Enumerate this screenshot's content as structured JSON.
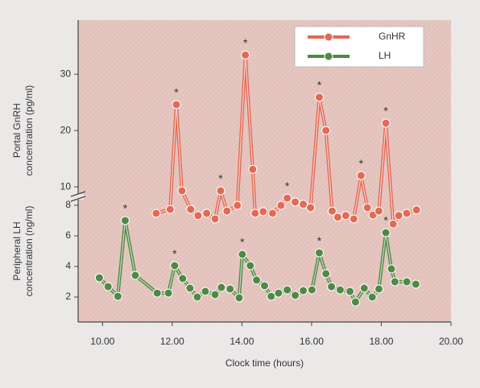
{
  "chart_data": {
    "type": "line",
    "xlabel": "Clock time (hours)",
    "ylabel": [
      "Portal GnRH",
      "concentration (pg/ml)"
    ],
    "y2label": [
      "Peripheral LH",
      "concentration (ng/ml)"
    ],
    "xlim": [
      9.3,
      20
    ],
    "xticks": [
      {
        "value": 10,
        "label": "10.00"
      },
      {
        "value": 12,
        "label": "12.00"
      },
      {
        "value": 14,
        "label": "14.00"
      },
      {
        "value": 16,
        "label": "16.00"
      },
      {
        "value": 18,
        "label": "18.00"
      },
      {
        "value": 20,
        "label": "20.00"
      }
    ],
    "ylim": [
      -14,
      39.6
    ],
    "yticks": [
      10,
      20,
      30
    ],
    "y2lim": [
      0.37,
      20.1
    ],
    "y2ticks": [
      2,
      4,
      6,
      8
    ],
    "legend": "upper right",
    "series": [
      {
        "name": "GnHR",
        "color": "#e26a55",
        "axis": "y",
        "x": [
          11.54,
          11.94,
          12.12,
          12.28,
          12.53,
          12.74,
          12.99,
          13.23,
          13.39,
          13.57,
          13.87,
          14.1,
          14.31,
          14.38,
          14.61,
          14.88,
          15.12,
          15.3,
          15.53,
          15.76,
          15.97,
          16.22,
          16.41,
          16.59,
          16.75,
          16.98,
          17.21,
          17.42,
          17.6,
          17.76,
          17.93,
          18.13,
          18.34,
          18.5,
          18.73,
          19.01
        ],
        "values": [
          5.3,
          6.0,
          24.6,
          9.3,
          6.0,
          4.9,
          5.3,
          4.3,
          9.3,
          5.7,
          6.7,
          33.4,
          13.1,
          5.3,
          5.6,
          5.3,
          6.7,
          8.0,
          7.3,
          6.9,
          6.3,
          25.9,
          20.0,
          5.7,
          4.6,
          4.9,
          4.3,
          12.0,
          6.3,
          5.0,
          5.7,
          21.3,
          3.4,
          4.9,
          5.3,
          5.9
        ]
      },
      {
        "name": "LH",
        "color": "#4f8a45",
        "axis": "y2",
        "x": [
          9.91,
          10.16,
          10.44,
          10.65,
          10.94,
          11.57,
          11.89,
          12.07,
          12.3,
          12.51,
          12.72,
          12.95,
          13.23,
          13.41,
          13.66,
          13.92,
          14.01,
          14.24,
          14.42,
          14.65,
          14.84,
          15.05,
          15.3,
          15.53,
          15.76,
          16.01,
          16.22,
          16.41,
          16.57,
          16.82,
          17.1,
          17.26,
          17.51,
          17.74,
          17.93,
          18.13,
          18.29,
          18.39,
          18.73,
          18.99
        ],
        "values": [
          3.26,
          2.68,
          2.05,
          7.0,
          3.42,
          2.26,
          2.26,
          4.05,
          3.21,
          2.58,
          2.0,
          2.37,
          2.16,
          2.63,
          2.53,
          1.95,
          4.79,
          4.05,
          3.11,
          2.74,
          2.05,
          2.26,
          2.47,
          2.11,
          2.42,
          2.47,
          4.89,
          3.53,
          2.68,
          2.47,
          2.37,
          1.68,
          2.58,
          2.0,
          2.53,
          6.21,
          3.84,
          3.0,
          3.0,
          2.84
        ]
      }
    ],
    "annotations": [
      {
        "text": "*",
        "x": 12.12,
        "y": 24.6,
        "axis": "y"
      },
      {
        "text": "*",
        "x": 13.39,
        "y": 9.3,
        "axis": "y"
      },
      {
        "text": "*",
        "x": 14.1,
        "y": 33.4,
        "axis": "y"
      },
      {
        "text": "*",
        "x": 15.3,
        "y": 8.0,
        "axis": "y"
      },
      {
        "text": "*",
        "x": 16.22,
        "y": 25.9,
        "axis": "y"
      },
      {
        "text": "*",
        "x": 17.42,
        "y": 12.0,
        "axis": "y"
      },
      {
        "text": "*",
        "x": 18.13,
        "y": 21.3,
        "axis": "y"
      },
      {
        "text": "*",
        "x": 10.65,
        "y": 7.0,
        "axis": "y2"
      },
      {
        "text": "*",
        "x": 12.07,
        "y": 4.05,
        "axis": "y2"
      },
      {
        "text": "*",
        "x": 14.01,
        "y": 4.79,
        "axis": "y2"
      },
      {
        "text": "*",
        "x": 16.22,
        "y": 4.89,
        "axis": "y2"
      },
      {
        "text": "*",
        "x": 18.13,
        "y": 6.21,
        "axis": "y2"
      }
    ]
  }
}
